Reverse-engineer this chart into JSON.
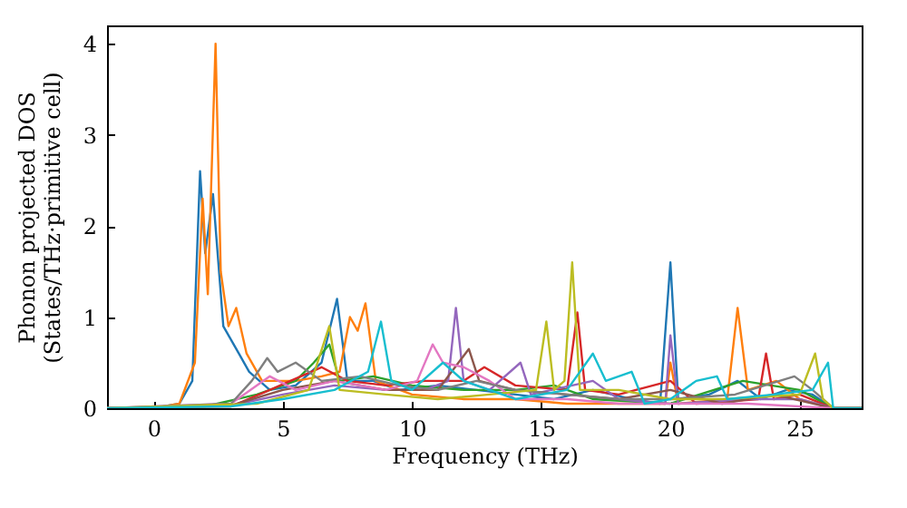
{
  "chart_data": {
    "type": "line",
    "xlabel": "Frequency (THz)",
    "ylabel": "Phonon projected DOS\n(States/THz·primitive cell)",
    "xlim": [
      -1.8,
      27.4
    ],
    "ylim": [
      0,
      4.2
    ],
    "xticks": [
      0,
      5,
      10,
      15,
      20,
      25
    ],
    "yticks": [
      0,
      1,
      2,
      3,
      4
    ],
    "grid": false,
    "series": [
      {
        "color": "#1f77b4",
        "x": [
          -1.8,
          0,
          1,
          1.5,
          1.8,
          2.0,
          2.3,
          2.7,
          3.0,
          3.3,
          3.7,
          4.5,
          5.5,
          6.5,
          7.1,
          7.5,
          8.5,
          9.5,
          11,
          12.5,
          14,
          15.5,
          17,
          18.5,
          19.6,
          20.0,
          20.3,
          21.5,
          22.6,
          23.5,
          24.5,
          25.5,
          26.3,
          27.4
        ],
        "values": [
          0,
          0,
          0.05,
          0.3,
          2.6,
          1.7,
          2.35,
          0.9,
          0.75,
          0.6,
          0.4,
          0.2,
          0.25,
          0.5,
          1.2,
          0.3,
          0.3,
          0.2,
          0.25,
          0.2,
          0.15,
          0.1,
          0.2,
          0.1,
          0.05,
          1.6,
          0.1,
          0.15,
          0.3,
          0.1,
          0.2,
          0.15,
          0,
          0
        ]
      },
      {
        "color": "#ff7f0e",
        "x": [
          -1.8,
          0,
          1,
          1.6,
          1.9,
          2.1,
          2.4,
          2.6,
          2.9,
          3.2,
          3.6,
          4.2,
          5.5,
          6.5,
          7.2,
          7.6,
          7.9,
          8.2,
          8.6,
          10,
          12,
          14,
          16,
          19.8,
          20.0,
          20.3,
          22.2,
          22.6,
          23.0,
          24.1,
          25,
          26.3,
          27.4
        ],
        "values": [
          0,
          0,
          0.05,
          0.5,
          2.3,
          1.25,
          4.0,
          1.5,
          0.9,
          1.1,
          0.6,
          0.3,
          0.3,
          0.35,
          0.4,
          1.0,
          0.85,
          1.15,
          0.3,
          0.15,
          0.1,
          0.1,
          0.05,
          0.05,
          0.5,
          0.05,
          0.1,
          1.1,
          0.2,
          0.3,
          0.1,
          0,
          0
        ]
      },
      {
        "color": "#2ca02c",
        "x": [
          -1.8,
          2,
          4,
          5.5,
          6.2,
          6.8,
          7.2,
          8.5,
          10,
          12,
          14,
          15.5,
          17,
          20,
          22.8,
          25,
          26.3,
          27.4
        ],
        "values": [
          0,
          0.02,
          0.15,
          0.3,
          0.5,
          0.7,
          0.3,
          0.35,
          0.25,
          0.2,
          0.2,
          0.25,
          0.1,
          0.05,
          0.3,
          0.2,
          0,
          0
        ]
      },
      {
        "color": "#d62728",
        "x": [
          -1.8,
          3,
          4.5,
          6.5,
          7.5,
          9,
          10.5,
          12,
          12.8,
          14,
          16,
          16.4,
          16.7,
          18,
          20,
          21,
          23.4,
          23.7,
          24,
          25,
          26.3,
          27.4
        ],
        "values": [
          0,
          0.02,
          0.2,
          0.45,
          0.3,
          0.25,
          0.3,
          0.3,
          0.45,
          0.25,
          0.2,
          1.05,
          0.2,
          0.15,
          0.3,
          0.05,
          0.1,
          0.6,
          0.1,
          0.15,
          0,
          0
        ]
      },
      {
        "color": "#9467bd",
        "x": [
          -1.8,
          3,
          5,
          7,
          9,
          10.5,
          11.4,
          11.7,
          12,
          13,
          14.2,
          14.6,
          17,
          18,
          19.8,
          20.0,
          20.3,
          23,
          25,
          26.3,
          27.4
        ],
        "values": [
          0,
          0.03,
          0.15,
          0.25,
          0.2,
          0.2,
          0.3,
          1.1,
          0.3,
          0.2,
          0.5,
          0.15,
          0.3,
          0.1,
          0.05,
          0.8,
          0.05,
          0.1,
          0.1,
          0,
          0
        ]
      },
      {
        "color": "#8c564b",
        "x": [
          -1.8,
          3,
          5,
          7,
          9,
          11,
          12.2,
          12.6,
          14,
          16,
          18,
          20,
          22,
          24,
          26.3,
          27.4
        ],
        "values": [
          0,
          0.03,
          0.2,
          0.3,
          0.2,
          0.2,
          0.65,
          0.3,
          0.2,
          0.15,
          0.1,
          0.2,
          0.05,
          0.15,
          0,
          0
        ]
      },
      {
        "color": "#e377c2",
        "x": [
          -1.8,
          3,
          4.5,
          5.5,
          7,
          9,
          10.2,
          10.8,
          11.2,
          12,
          13,
          14,
          16,
          18,
          20,
          23,
          26.3,
          27.4
        ],
        "values": [
          0,
          0.05,
          0.35,
          0.2,
          0.3,
          0.2,
          0.3,
          0.7,
          0.5,
          0.45,
          0.3,
          0.1,
          0.1,
          0.05,
          0.05,
          0.05,
          0,
          0
        ]
      },
      {
        "color": "#7f7f7f",
        "x": [
          -1.8,
          3,
          3.8,
          4.4,
          4.8,
          5.5,
          6.5,
          8,
          9.5,
          11,
          12.5,
          14,
          16,
          18,
          20,
          22.5,
          24.8,
          25.5,
          26.3,
          27.4
        ],
        "values": [
          0,
          0.05,
          0.3,
          0.55,
          0.4,
          0.5,
          0.3,
          0.35,
          0.25,
          0.2,
          0.3,
          0.2,
          0.15,
          0.1,
          0.1,
          0.15,
          0.35,
          0.2,
          0,
          0
        ]
      },
      {
        "color": "#bcbd22",
        "x": [
          -1.8,
          4,
          6,
          6.8,
          7.2,
          9,
          11,
          13,
          14.8,
          15.2,
          15.5,
          15.9,
          16.2,
          16.5,
          18,
          20,
          22,
          25,
          25.6,
          25.9,
          26.3,
          27.4
        ],
        "values": [
          0,
          0.05,
          0.2,
          0.9,
          0.2,
          0.15,
          0.1,
          0.15,
          0.2,
          0.95,
          0.2,
          0.3,
          1.6,
          0.2,
          0.2,
          0.1,
          0.1,
          0.15,
          0.6,
          0.1,
          0,
          0
        ]
      },
      {
        "color": "#17becf",
        "x": [
          -1.8,
          3,
          5,
          7,
          8.3,
          8.8,
          9.2,
          10,
          11.2,
          12,
          14,
          16,
          17,
          17.5,
          18.5,
          19,
          20,
          21,
          21.8,
          22.2,
          24,
          25.5,
          26.1,
          26.3,
          27.4
        ],
        "values": [
          0,
          0.02,
          0.1,
          0.2,
          0.4,
          0.95,
          0.3,
          0.2,
          0.5,
          0.3,
          0.1,
          0.2,
          0.6,
          0.3,
          0.4,
          0.05,
          0.1,
          0.3,
          0.35,
          0.1,
          0.15,
          0.2,
          0.5,
          0,
          0
        ]
      }
    ]
  }
}
